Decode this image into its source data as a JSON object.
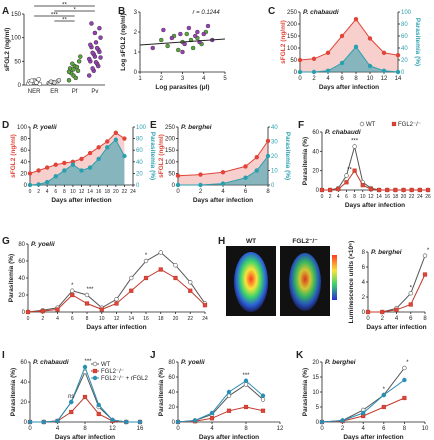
{
  "chart_data": [
    {
      "type": "strip",
      "panel": "A",
      "ylabel": "sFGL2 (ng/ml)",
      "categories": [
        "NER",
        "ER",
        "Pf",
        "Pv"
      ],
      "colors": [
        "#ffffff",
        "#dddddd",
        "#5aa63c",
        "#9b3fb8"
      ],
      "values": [
        [
          3,
          5,
          6,
          8,
          10,
          12,
          4,
          7,
          2,
          9,
          5
        ],
        [
          4,
          6,
          8,
          3,
          5,
          10,
          7
        ],
        [
          10,
          20,
          30,
          35,
          40,
          50,
          25,
          15,
          60,
          45,
          38,
          28,
          33
        ],
        [
          20,
          30,
          40,
          50,
          60,
          70,
          80,
          90,
          100,
          35,
          45,
          55,
          65,
          75,
          85,
          110,
          120,
          130,
          48,
          58,
          68,
          78
        ]
      ],
      "ylim": [
        0,
        150
      ],
      "yticks": [
        0,
        50,
        100,
        150
      ],
      "annotations": [
        {
          "text": "**",
          "from": 0,
          "to": 3
        },
        {
          "text": "*",
          "from": 1,
          "to": 3
        },
        {
          "text": "***",
          "from": 0,
          "to": 2
        },
        {
          "text": "**",
          "from": 1,
          "to": 2
        }
      ]
    },
    {
      "type": "scatter",
      "panel": "B",
      "xlabel": "Log parasites (μl)",
      "ylabel": "Log sFGL2 (ng/ml)",
      "note": "r = 0.1244",
      "series": [
        {
          "color": "#5aa63c",
          "x": [
            2.0,
            2.3,
            2.6,
            3.0,
            3.2,
            3.5,
            3.7,
            3.9,
            4.1,
            2.8,
            3.4
          ],
          "y": [
            1.6,
            1.3,
            1.8,
            1.5,
            1.9,
            1.2,
            1.7,
            1.4,
            2.0,
            1.1,
            1.6
          ]
        },
        {
          "color": "#9b3fb8",
          "x": [
            1.6,
            2.1,
            2.5,
            2.9,
            3.1,
            3.3,
            3.6,
            3.8,
            4.0,
            4.2,
            4.4,
            3.0,
            3.7
          ],
          "y": [
            1.2,
            2.1,
            1.7,
            1.9,
            1.4,
            2.2,
            1.8,
            1.5,
            1.9,
            2.3,
            1.6,
            1.0,
            2.0
          ]
        }
      ],
      "trend": {
        "x": [
          1,
          5
        ],
        "y": [
          1.35,
          1.65
        ]
      },
      "xlim": [
        1,
        5
      ],
      "xticks": [
        1,
        2,
        3,
        4,
        5
      ],
      "ylim": [
        0,
        3
      ],
      "yticks": [
        0,
        1,
        2,
        3
      ]
    },
    {
      "type": "line",
      "panel": "C",
      "title": "P. chabaudi",
      "xlabel": "Days after infection",
      "ylabel": "sFGL2 (ng/ml)",
      "y2label": "Parasitemia (%)",
      "fill": true,
      "x": [
        0,
        2,
        4,
        6,
        8,
        10,
        12,
        14
      ],
      "series": [
        {
          "color": "#e0453a",
          "marker": "circle",
          "marker_fill": "#e0453a",
          "values": [
            50,
            55,
            80,
            150,
            220,
            140,
            80,
            70
          ]
        },
        {
          "color": "#2a9fae",
          "marker": "circle",
          "marker_fill": "#2a9fae",
          "axis": "y2",
          "values": [
            0,
            0,
            2,
            15,
            42,
            10,
            2,
            0
          ]
        }
      ],
      "xlim": [
        0,
        14
      ],
      "xticks": [
        0,
        2,
        4,
        6,
        8,
        10,
        12,
        14
      ],
      "ylim": [
        0,
        250
      ],
      "yticks": [
        0,
        50,
        100,
        150,
        200,
        250
      ],
      "y2lim": [
        0,
        100
      ],
      "y2ticks": [
        0,
        20,
        40,
        60,
        80,
        100
      ]
    },
    {
      "type": "line",
      "panel": "D",
      "title": "P. yoelii",
      "xlabel": "Days after infection",
      "ylabel": "sFGL2 (ng/ml)",
      "y2label": "Parasitemia (%)",
      "fill": true,
      "x": [
        0,
        2,
        4,
        6,
        8,
        10,
        12,
        14,
        16,
        18,
        20,
        22
      ],
      "series": [
        {
          "color": "#e0453a",
          "marker": "circle",
          "marker_fill": "#e0453a",
          "values": [
            20,
            25,
            30,
            35,
            38,
            40,
            45,
            55,
            65,
            75,
            90,
            80
          ]
        },
        {
          "color": "#2a9fae",
          "marker": "circle",
          "marker_fill": "#2a9fae",
          "axis": "y2",
          "values": [
            0,
            1,
            5,
            15,
            25,
            35,
            25,
            30,
            45,
            65,
            78,
            50
          ]
        }
      ],
      "xlim": [
        0,
        24
      ],
      "xticks": [
        0,
        2,
        4,
        6,
        8,
        10,
        12,
        14,
        16,
        18,
        20,
        22,
        24
      ],
      "ylim": [
        0,
        100
      ],
      "yticks": [
        0,
        20,
        40,
        60,
        80,
        100
      ],
      "y2lim": [
        0,
        100
      ],
      "y2ticks": [
        0,
        20,
        40,
        60,
        80,
        100
      ]
    },
    {
      "type": "line",
      "panel": "E",
      "title": "P. berghei",
      "xlabel": "Days after infection",
      "ylabel": "sFGL2 (ng/ml)",
      "y2label": "Parasitemia (%)",
      "fill": true,
      "x": [
        0,
        2,
        4,
        6,
        7,
        8
      ],
      "series": [
        {
          "color": "#e0453a",
          "marker": "circle",
          "marker_fill": "#e0453a",
          "values": [
            40,
            45,
            55,
            80,
            120,
            190
          ]
        },
        {
          "color": "#2a9fae",
          "marker": "circle",
          "marker_fill": "#2a9fae",
          "axis": "y2",
          "values": [
            0,
            0,
            1,
            5,
            10,
            20
          ]
        }
      ],
      "xlim": [
        0,
        8
      ],
      "xticks": [
        0,
        2,
        4,
        6,
        8
      ],
      "ylim": [
        0,
        250
      ],
      "yticks": [
        0,
        50,
        100,
        150,
        200,
        250
      ],
      "y2lim": [
        0,
        40
      ],
      "y2ticks": [
        0,
        10,
        20,
        30,
        40
      ]
    },
    {
      "type": "line",
      "panel": "F",
      "title": "P. chabaudi",
      "xlabel": "Days after infection",
      "ylabel": "Parasitemia (%)",
      "legend": "top",
      "x": [
        0,
        2,
        4,
        6,
        8,
        10,
        12,
        14,
        16,
        18,
        20,
        22,
        24,
        26
      ],
      "series": [
        {
          "name": "WT",
          "color": "#555555",
          "marker": "circle",
          "marker_fill": "#ffffff",
          "values": [
            0,
            0,
            2,
            15,
            45,
            8,
            2,
            0,
            0,
            0,
            0,
            0,
            0,
            0
          ]
        },
        {
          "name": "FGL2⁻/⁻",
          "color": "#c0392b",
          "marker": "square",
          "marker_fill": "#e0453a",
          "values": [
            0,
            0,
            1,
            8,
            20,
            5,
            1,
            0,
            0,
            0,
            0,
            0,
            0,
            0
          ]
        }
      ],
      "annotations": [
        {
          "text": "***",
          "x": 8
        },
        {
          "text": "**",
          "x": 6
        }
      ],
      "xlim": [
        0,
        26
      ],
      "xticks": [
        0,
        2,
        4,
        6,
        8,
        10,
        12,
        14,
        16,
        18,
        20,
        22,
        24,
        26
      ],
      "ylim": [
        0,
        60
      ],
      "yticks": [
        0,
        20,
        40,
        60
      ]
    },
    {
      "type": "line",
      "panel": "G",
      "title": "P. yoelii",
      "xlabel": "Days after infection",
      "ylabel": "Parasitemia (%)",
      "x": [
        0,
        2,
        4,
        6,
        8,
        10,
        12,
        14,
        16,
        18,
        20,
        22,
        24
      ],
      "series": [
        {
          "name": "WT",
          "color": "#555555",
          "marker": "circle",
          "marker_fill": "#ffffff",
          "values": [
            0,
            2,
            5,
            25,
            20,
            5,
            15,
            40,
            60,
            70,
            55,
            35,
            10
          ]
        },
        {
          "name": "FGL2⁻/⁻",
          "color": "#c0392b",
          "marker": "square",
          "marker_fill": "#e0453a",
          "values": [
            0,
            1,
            3,
            20,
            10,
            3,
            10,
            25,
            40,
            50,
            40,
            25,
            8
          ]
        }
      ],
      "annotations": [
        {
          "text": "*",
          "x": 6
        },
        {
          "text": "***",
          "x": 8
        },
        {
          "text": "*",
          "x": 16
        }
      ],
      "xlim": [
        0,
        24
      ],
      "xticks": [
        0,
        2,
        4,
        6,
        8,
        10,
        12,
        14,
        16,
        18,
        20,
        22,
        24
      ],
      "ylim": [
        0,
        80
      ],
      "yticks": [
        0,
        20,
        40,
        60,
        80
      ]
    },
    {
      "type": "line",
      "panel": "H",
      "title": "P. berghei",
      "ylabel": "Luminescence units (×10⁶)",
      "xlabel": "Days after infection",
      "image_labels": [
        "WT",
        "FGL2⁻/⁻"
      ],
      "x": [
        0,
        2,
        4,
        6,
        8
      ],
      "series": [
        {
          "name": "WT",
          "color": "#555555",
          "marker": "circle",
          "marker_fill": "#ffffff",
          "values": [
            0,
            0,
            0.5,
            2.5,
            7.5
          ]
        },
        {
          "name": "FGL2⁻/⁻",
          "color": "#c0392b",
          "marker": "square",
          "marker_fill": "#e0453a",
          "values": [
            0,
            0,
            0.3,
            1,
            5
          ]
        }
      ],
      "annotations": [
        {
          "text": "*",
          "x": 6
        },
        {
          "text": "*",
          "x": 8
        }
      ],
      "xlim": [
        0,
        8
      ],
      "xticks": [
        0,
        2,
        4,
        6,
        8
      ],
      "ylim": [
        0,
        8
      ],
      "yticks": [
        0,
        2,
        4,
        6,
        8
      ]
    },
    {
      "type": "line",
      "panel": "I",
      "title": "P. chabaudi",
      "xlabel": "Days after infection",
      "ylabel": "Parasitemia (%)",
      "legend": "upper right",
      "x": [
        0,
        2,
        4,
        6,
        8,
        10,
        12,
        14,
        16
      ],
      "series": [
        {
          "name": "WT",
          "color": "#555555",
          "marker": "circle",
          "marker_fill": "#ffffff",
          "values": [
            0,
            0,
            1,
            20,
            50,
            15,
            2,
            0,
            0
          ]
        },
        {
          "name": "FGL2⁻/⁻",
          "color": "#c0392b",
          "marker": "square",
          "marker_fill": "#e0453a",
          "values": [
            0,
            0,
            1,
            10,
            25,
            8,
            1,
            0,
            0
          ]
        },
        {
          "name": "FGL2⁻/⁻ + rFGL2",
          "color": "#2a8fb5",
          "marker": "circle",
          "marker_fill": "#2a8fb5",
          "values": [
            0,
            0,
            1,
            20,
            55,
            17,
            2,
            0,
            0
          ]
        }
      ],
      "annotations": [
        {
          "text": "ns",
          "x": 6
        },
        {
          "text": "***",
          "x": 8
        }
      ],
      "xlim": [
        0,
        16
      ],
      "xticks": [
        0,
        4,
        8,
        12,
        16
      ],
      "ylim": [
        0,
        60
      ],
      "yticks": [
        0,
        20,
        40,
        60
      ]
    },
    {
      "type": "line",
      "panel": "J",
      "title": "P. yoelii",
      "xlabel": "Days after infection",
      "ylabel": "Parasitemia (%)",
      "x": [
        0,
        2,
        4,
        6,
        8,
        10
      ],
      "series": [
        {
          "name": "WT",
          "color": "#555555",
          "marker": "circle",
          "marker_fill": "#ffffff",
          "values": [
            0,
            2,
            10,
            35,
            50,
            30
          ]
        },
        {
          "name": "FGL2⁻/⁻",
          "color": "#c0392b",
          "marker": "square",
          "marker_fill": "#e0453a",
          "values": [
            0,
            1,
            5,
            15,
            20,
            15
          ]
        },
        {
          "name": "FGL2⁻/⁻ + rFGL2",
          "color": "#2a8fb5",
          "marker": "circle",
          "marker_fill": "#2a8fb5",
          "values": [
            0,
            2,
            12,
            40,
            55,
            35
          ]
        }
      ],
      "annotations": [
        {
          "text": "***",
          "x": 8
        }
      ],
      "xlim": [
        0,
        12
      ],
      "xticks": [
        0,
        4,
        8,
        12
      ],
      "ylim": [
        0,
        80
      ],
      "yticks": [
        0,
        20,
        40,
        60,
        80
      ]
    },
    {
      "type": "line",
      "panel": "K",
      "title": "P. berghei",
      "xlabel": "Days after infection",
      "ylabel": "Parasitemia (%)",
      "x": [
        0,
        2,
        4,
        6,
        8
      ],
      "series": [
        {
          "name": "WT",
          "color": "#555555",
          "marker": "circle",
          "marker_fill": "#ffffff",
          "values": [
            0,
            0.5,
            4,
            9,
            18
          ]
        },
        {
          "name": "FGL2⁻/⁻",
          "color": "#c0392b",
          "marker": "square",
          "marker_fill": "#e0453a",
          "values": [
            0,
            0.3,
            2,
            5,
            8
          ]
        },
        {
          "name": "FGL2⁻/⁻ + rFGL2",
          "color": "#2a8fb5",
          "marker": "circle",
          "marker_fill": "#2a8fb5",
          "values": [
            0,
            0.5,
            3,
            9,
            14
          ]
        }
      ],
      "annotations": [
        {
          "text": "*",
          "x": 6
        },
        {
          "text": "*",
          "x": 8
        }
      ],
      "xlim": [
        0,
        10
      ],
      "xticks": [
        0,
        2,
        4,
        6,
        8,
        10
      ],
      "ylim": [
        0,
        20
      ],
      "yticks": [
        0,
        5,
        10,
        15,
        20
      ]
    }
  ]
}
